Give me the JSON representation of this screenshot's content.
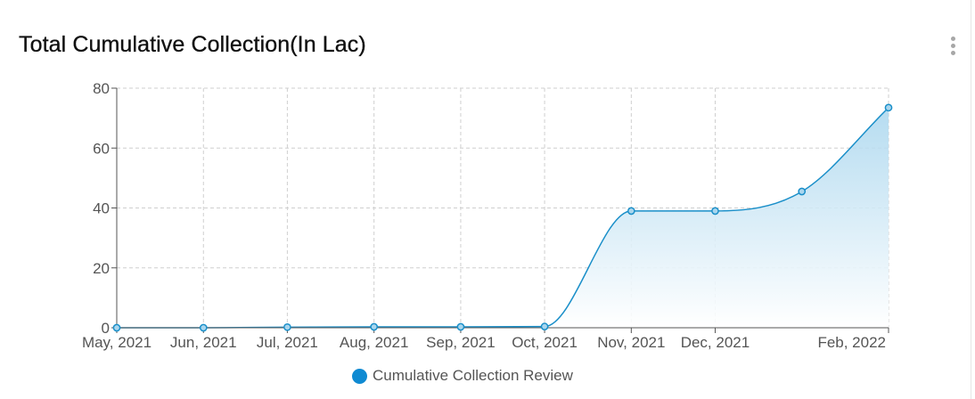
{
  "card": {
    "title": "Total Cumulative Collection(In Lac)",
    "menu_icon": "more-vertical-icon"
  },
  "legend": {
    "label": "Cumulative Collection Review",
    "swatch_icon": "circle-marker-icon"
  },
  "colors": {
    "series": "#1a8fc9",
    "legend_swatch": "#0f8ad2",
    "area_top": "#a9d6ee",
    "area_bottom": "#ffffff",
    "grid": "#cfcfcf",
    "axis_text": "#555555",
    "axis_line": "#555555"
  },
  "chart_data": {
    "type": "area",
    "title": "Total Cumulative Collection(In Lac)",
    "xlabel": "",
    "ylabel": "",
    "x_ticks": [
      "May, 2021",
      "Jun, 2021",
      "Jul, 2021",
      "Aug, 2021",
      "Sep, 2021",
      "Oct, 2021",
      "Nov, 2021",
      "Dec, 2021",
      "Feb, 2022"
    ],
    "x_tick_dates": [
      "2021-05-01",
      "2021-06-01",
      "2021-07-01",
      "2021-08-01",
      "2021-09-01",
      "2021-10-01",
      "2021-11-01",
      "2021-12-01",
      "2022-02-01"
    ],
    "y_ticks": [
      0,
      20,
      40,
      60,
      80
    ],
    "ylim": [
      0,
      80
    ],
    "xlim": [
      "2021-05-01",
      "2022-02-01"
    ],
    "grid": true,
    "legend_position": "bottom",
    "series": [
      {
        "name": "Cumulative Collection Review",
        "points": [
          {
            "x": "2021-05-01",
            "y": 0
          },
          {
            "x": "2021-06-01",
            "y": 0
          },
          {
            "x": "2021-07-01",
            "y": 0.2
          },
          {
            "x": "2021-08-01",
            "y": 0.3
          },
          {
            "x": "2021-09-01",
            "y": 0.3
          },
          {
            "x": "2021-10-01",
            "y": 0.4
          },
          {
            "x": "2021-11-01",
            "y": 39
          },
          {
            "x": "2021-12-01",
            "y": 39
          },
          {
            "x": "2022-01-01",
            "y": 45.5
          },
          {
            "x": "2022-02-01",
            "y": 73.5
          }
        ]
      }
    ]
  }
}
